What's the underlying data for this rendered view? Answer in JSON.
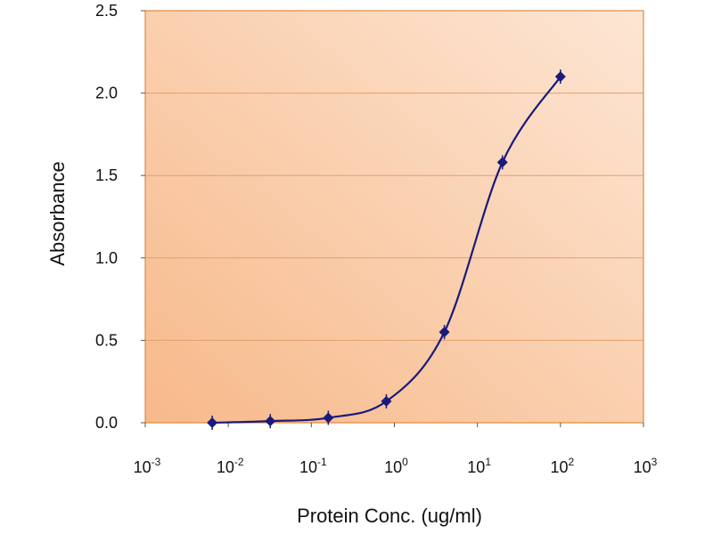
{
  "chart_data": {
    "type": "line",
    "title": "",
    "xlabel": "Protein Conc. (ug/ml)",
    "ylabel": "Absorbance",
    "x_scale": "log",
    "xlim": [
      0.001,
      1000
    ],
    "ylim": [
      0,
      2.5
    ],
    "x_ticks": [
      {
        "value": 0.001,
        "base": "10",
        "exp": "-3"
      },
      {
        "value": 0.01,
        "base": "10",
        "exp": "-2"
      },
      {
        "value": 0.1,
        "base": "10",
        "exp": "-1"
      },
      {
        "value": 1,
        "base": "10",
        "exp": "0"
      },
      {
        "value": 10,
        "base": "10",
        "exp": "1"
      },
      {
        "value": 100,
        "base": "10",
        "exp": "2"
      },
      {
        "value": 1000,
        "base": "10",
        "exp": "3"
      }
    ],
    "y_ticks": [
      {
        "value": 0.0,
        "label": "0.0"
      },
      {
        "value": 0.5,
        "label": "0.5"
      },
      {
        "value": 1.0,
        "label": "1.0"
      },
      {
        "value": 1.5,
        "label": "1.5"
      },
      {
        "value": 2.0,
        "label": "2.0"
      },
      {
        "value": 2.5,
        "label": "2.5"
      }
    ],
    "grid": {
      "horizontal": true,
      "vertical": false
    },
    "series": [
      {
        "x": [
          0.0064,
          0.032,
          0.16,
          0.8,
          4,
          20,
          100
        ],
        "y": [
          0.0,
          0.01,
          0.03,
          0.13,
          0.55,
          1.58,
          2.1
        ],
        "color": "#1a1a7a",
        "marker": "diamond"
      }
    ],
    "colors": {
      "plot_bg_left": "#f7b98a",
      "plot_bg_right": "#fde6d4",
      "plot_border": "#e08a3c",
      "gridline": "#e3a06a",
      "line": "#1a1a7a"
    }
  }
}
